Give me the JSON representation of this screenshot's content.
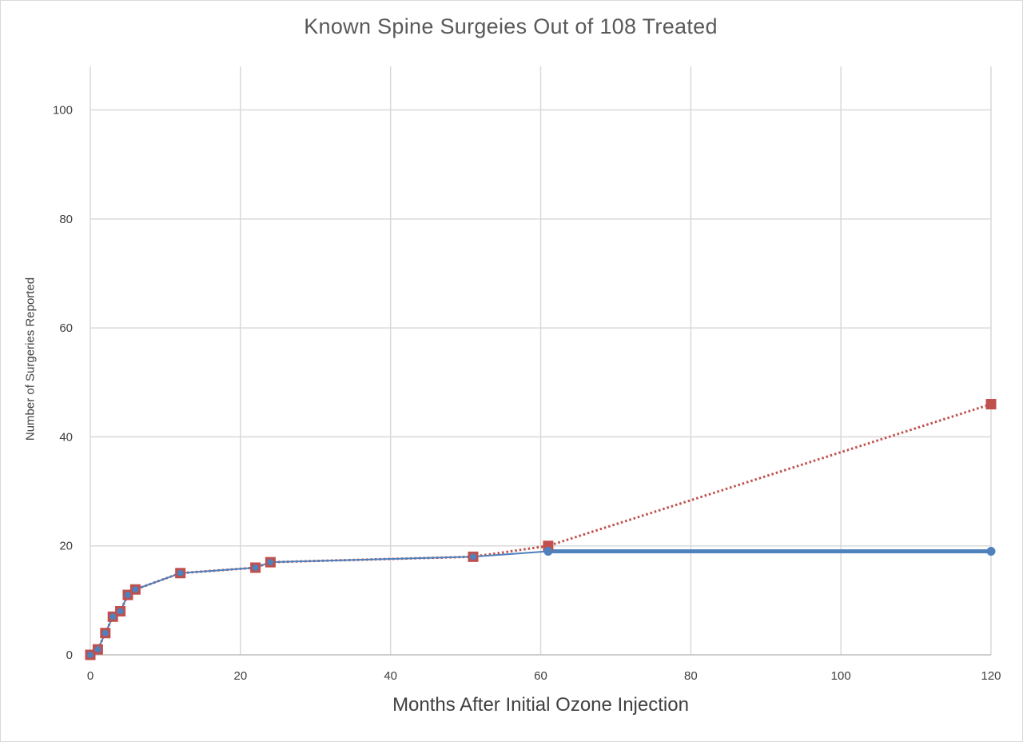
{
  "chart_data": {
    "type": "line",
    "title": "Known Spine Surgeies Out of 108 Treated",
    "xlabel": "Months After Initial Ozone Injection",
    "ylabel": "Number of Surgeries Reported",
    "xlim": [
      0,
      120
    ],
    "ylim": [
      0,
      108
    ],
    "xticks": [
      0,
      20,
      40,
      60,
      80,
      100,
      120
    ],
    "yticks": [
      0,
      20,
      40,
      60,
      80,
      100
    ],
    "grid": true,
    "series": [
      {
        "style": "dotted",
        "color": "#c0504d",
        "marker": "square",
        "x": [
          0,
          1,
          2,
          3,
          4,
          5,
          6,
          12,
          22,
          24,
          51,
          61,
          120
        ],
        "y": [
          0,
          1,
          4,
          7,
          8,
          11,
          12,
          15,
          16,
          17,
          18,
          20,
          46
        ]
      },
      {
        "style": "solid",
        "color": "#4f81bd",
        "marker": "circle",
        "x": [
          0,
          1,
          2,
          3,
          4,
          5,
          6,
          12,
          22,
          24,
          51,
          61,
          120
        ],
        "y": [
          0,
          1,
          4,
          7,
          8,
          11,
          12,
          15,
          16,
          17,
          18,
          19,
          19
        ]
      }
    ]
  }
}
